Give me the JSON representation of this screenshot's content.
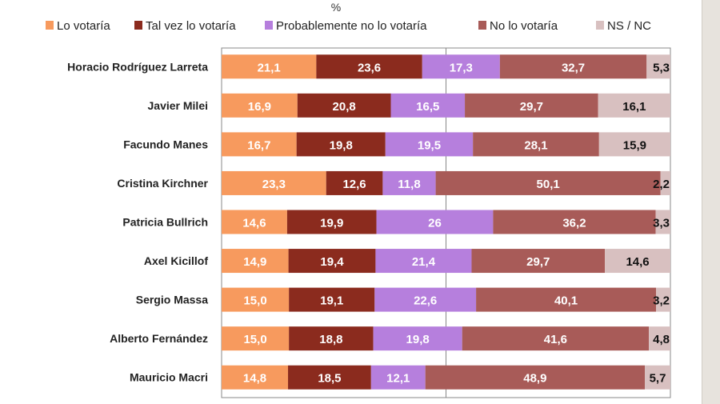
{
  "chart_data": {
    "type": "bar",
    "orientation": "horizontal",
    "stacked": "100%",
    "title": "%",
    "legend_position": "top",
    "categories": [
      "Horacio Rodríguez Larreta",
      "Javier Milei",
      "Facundo Manes",
      "Cristina Kirchner",
      "Patricia Bullrich",
      "Axel Kicillof",
      "Sergio Massa",
      "Alberto Fernández",
      "Mauricio Macri"
    ],
    "series": [
      {
        "name": "Lo votaría",
        "color": "#f79a5e",
        "label_color": "#ffffff",
        "values": [
          21.1,
          16.9,
          16.7,
          23.3,
          14.6,
          14.9,
          15.0,
          15.0,
          14.8
        ],
        "labels": [
          "21,1",
          "16,9",
          "16,7",
          "23,3",
          "14,6",
          "14,9",
          "15,0",
          "15,0",
          "14,8"
        ]
      },
      {
        "name": "Tal vez lo votaría",
        "color": "#8b2b1e",
        "label_color": "#ffffff",
        "values": [
          23.6,
          20.8,
          19.8,
          12.6,
          19.9,
          19.4,
          19.1,
          18.8,
          18.5
        ],
        "labels": [
          "23,6",
          "20,8",
          "19,8",
          "12,6",
          "19,9",
          "19,4",
          "19,1",
          "18,8",
          "18,5"
        ]
      },
      {
        "name": "Probablemente no lo votaría",
        "color": "#b67fdd",
        "label_color": "#ffffff",
        "values": [
          17.3,
          16.5,
          19.5,
          11.8,
          26,
          21.4,
          22.6,
          19.8,
          12.1
        ],
        "labels": [
          "17,3",
          "16,5",
          "19,5",
          "11,8",
          "26",
          "21,4",
          "22,6",
          "19,8",
          "12,1"
        ]
      },
      {
        "name": "No lo votaría",
        "color": "#a85b58",
        "label_color": "#ffffff",
        "values": [
          32.7,
          29.7,
          28.1,
          50.1,
          36.2,
          29.7,
          40.1,
          41.6,
          48.9
        ],
        "labels": [
          "32,7",
          "29,7",
          "28,1",
          "50,1",
          "36,2",
          "29,7",
          "40,1",
          "41,6",
          "48,9"
        ]
      },
      {
        "name": "NS / NC",
        "color": "#d8c0c0",
        "label_color": "#111111",
        "values": [
          5.3,
          16.1,
          15.9,
          2.2,
          3.3,
          14.6,
          3.2,
          4.8,
          5.7
        ],
        "labels": [
          "5,3",
          "16,1",
          "15,9",
          "2,2",
          "3,3",
          "14,6",
          "3,2",
          "4,8",
          "5,7"
        ]
      }
    ],
    "xlim": [
      0,
      100
    ],
    "gridlines": [
      50
    ]
  }
}
